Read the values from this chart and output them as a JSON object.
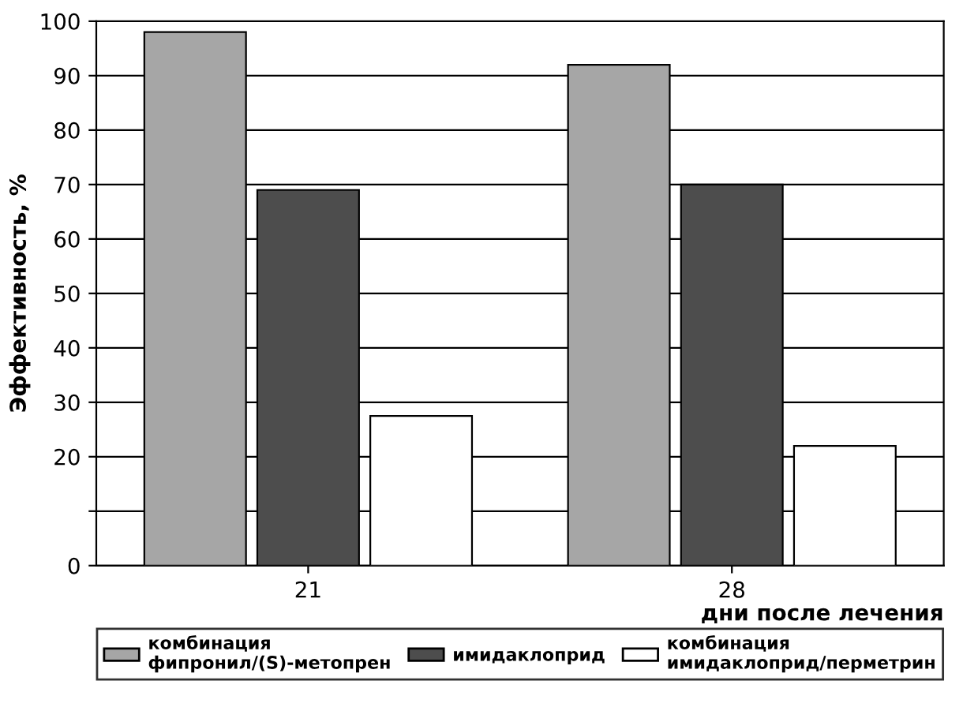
{
  "chart_data": {
    "type": "bar",
    "xlabel": "дни после лечения",
    "ylabel": "Эффективность, %",
    "categories": [
      "21",
      "28"
    ],
    "series": [
      {
        "name": "комбинация\nфипронил/(S)-метопрен",
        "color": "#a6a6a6",
        "values": [
          98,
          92
        ]
      },
      {
        "name": "имидаклоприд",
        "color": "#4d4d4d",
        "values": [
          69,
          70
        ]
      },
      {
        "name": "комбинация\nимидаклоприд/перметрин",
        "color": "#ffffff",
        "values": [
          27.5,
          22
        ]
      }
    ],
    "ylim": [
      0,
      100
    ],
    "yticks": [
      0,
      {
        "value": 10,
        "label": null
      },
      20,
      30,
      40,
      50,
      60,
      70,
      80,
      90,
      100
    ],
    "grid": "y",
    "legend": "bottom"
  }
}
